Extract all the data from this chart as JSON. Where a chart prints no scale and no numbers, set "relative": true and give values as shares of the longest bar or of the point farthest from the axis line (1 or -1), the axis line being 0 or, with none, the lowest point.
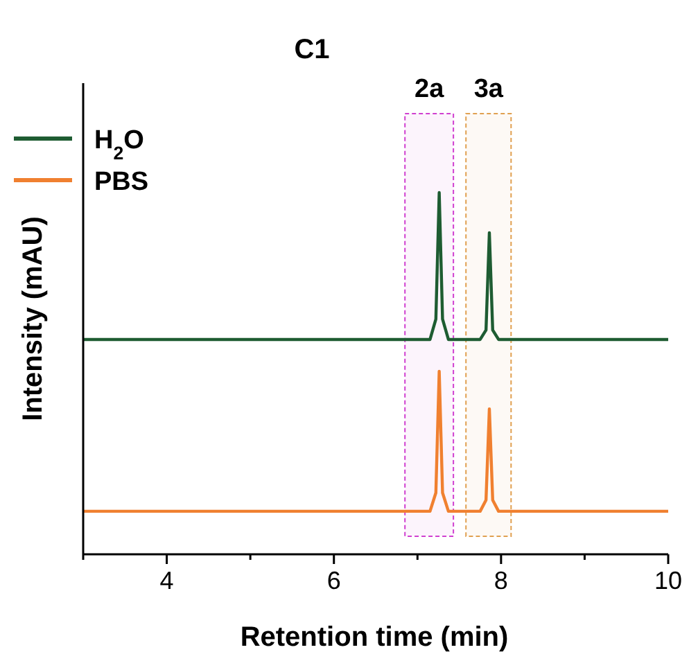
{
  "chart_data": {
    "type": "line",
    "title": "C1",
    "xlabel": "Retention time (min)",
    "ylabel": "Intensity (mAU)",
    "relative": true,
    "xlim": [
      3,
      10
    ],
    "xticks": [
      {
        "value": 3,
        "label": null
      },
      4,
      {
        "value": 5,
        "label": null
      },
      6,
      {
        "value": 7,
        "label": null
      },
      8,
      {
        "value": 9,
        "label": null
      },
      10
    ],
    "series": [
      {
        "name": "H$_{2}$O",
        "color": "#1e5c32",
        "x": [
          3,
          6.3,
          7.15,
          7.22,
          7.26,
          7.3,
          7.37,
          7.75,
          7.82,
          7.86,
          7.9,
          7.97,
          10
        ],
        "values": [
          0.594,
          0.594,
          0.594,
          0.65,
          1,
          0.65,
          0.594,
          0.594,
          0.62,
          0.889,
          0.62,
          0.594,
          0.594
        ]
      },
      {
        "name": "PBS",
        "color": "#f08030",
        "x": [
          3,
          6.3,
          7.15,
          7.22,
          7.26,
          7.3,
          7.37,
          7.75,
          7.82,
          7.86,
          7.9,
          7.97,
          10
        ],
        "values": [
          0.119,
          0.119,
          0.119,
          0.17,
          0.506,
          0.17,
          0.119,
          0.119,
          0.15,
          0.402,
          0.15,
          0.119,
          0.119
        ]
      }
    ],
    "bands": [
      {
        "axis": "x",
        "from": 6.85,
        "to": 7.43,
        "label": "2a",
        "color": "#d040d0"
      },
      {
        "axis": "x",
        "from": 7.58,
        "to": 8.12,
        "label": "3a",
        "color": "#e0a050"
      }
    ],
    "legend": "top left",
    "line_style": "solid"
  }
}
